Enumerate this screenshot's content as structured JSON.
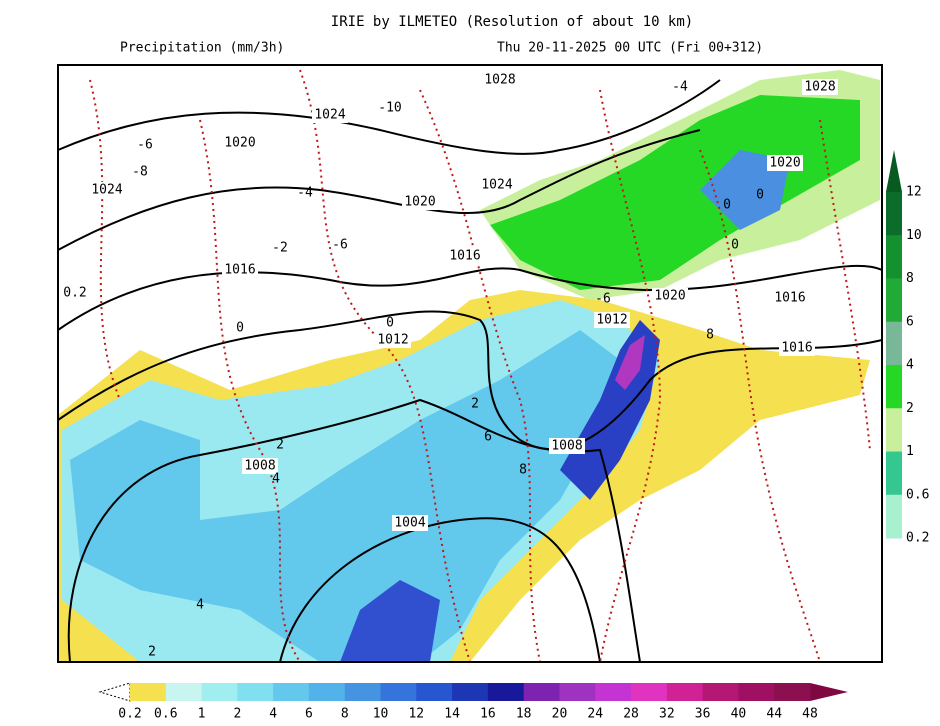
{
  "header": {
    "title": "IRIE by ILMETEO (Resolution of about 10 km)",
    "variable": "Precipitation (mm/3h)",
    "valid_time": "Thu 20-11-2025 00 UTC (Fri 00+312)"
  },
  "isobar_labels": [
    "1028",
    "1028",
    "1024",
    "1024",
    "1024",
    "1020",
    "1020",
    "1020",
    "1020",
    "1016",
    "1016",
    "1016",
    "1016",
    "1012",
    "1012",
    "1008",
    "1008",
    "1004"
  ],
  "temperature_labels": [
    "-10",
    "-6",
    "-8",
    "-4",
    "-6",
    "-2",
    "0",
    "0",
    "0.2",
    "2",
    "6",
    "8",
    "4",
    "2",
    "-4",
    "0",
    "0",
    "0",
    "-6",
    "8",
    "4",
    "2"
  ],
  "colorbar": {
    "labels": [
      "0.2",
      "0.6",
      "1",
      "2",
      "4",
      "6",
      "8",
      "10",
      "12",
      "14",
      "16",
      "18",
      "20",
      "24",
      "28",
      "32",
      "36",
      "40",
      "44",
      "48"
    ],
    "colors": [
      "#f5e050",
      "#c8f5f0",
      "#a0eef0",
      "#80e0f0",
      "#62c8ec",
      "#52b2ea",
      "#4494e2",
      "#3474dc",
      "#2656d0",
      "#1c36b4",
      "#18189a",
      "#7e22b0",
      "#a032c2",
      "#c434d2",
      "#e034c0",
      "#d02294",
      "#b41874",
      "#a01062",
      "#8c1050"
    ]
  },
  "side_colorbar": {
    "labels": [
      "12",
      "10",
      "8",
      "6",
      "4",
      "2",
      "1",
      "0.6",
      "0.2"
    ],
    "colors": [
      "#0a6e2a",
      "#14902e",
      "#22aa36",
      "#78b898",
      "#26d826",
      "#c8f09c",
      "#34c890",
      "#a8f0d0"
    ]
  }
}
